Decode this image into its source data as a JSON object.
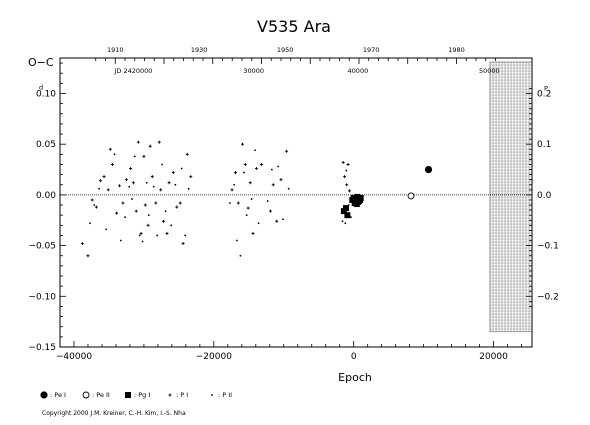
{
  "chart_data": {
    "type": "scatter",
    "title": "V535  Ara",
    "ylabel": "O−C",
    "xlabel": "Epoch",
    "xlim": [
      -42000,
      25500
    ],
    "ylim": [
      -0.15,
      0.135
    ],
    "x_ticks": [
      {
        "value": -40000,
        "label": "−40000"
      },
      {
        "value": -20000,
        "label": "−20000"
      },
      {
        "value": 0,
        "label": "0"
      },
      {
        "value": 20000,
        "label": "20000"
      }
    ],
    "y_ticks": [
      {
        "value": 0.1,
        "label": "0.10"
      },
      {
        "value": 0.05,
        "label": "0.05"
      },
      {
        "value": 0.0,
        "label": "0.00"
      },
      {
        "value": -0.05,
        "label": "−0.05"
      },
      {
        "value": -0.1,
        "label": "−0.10"
      },
      {
        "value": -0.15,
        "label": "−0.15"
      }
    ],
    "y_unit_mark": "d",
    "right_ticks": [
      {
        "value": 0.2,
        "label": "0.2"
      },
      {
        "value": 0.1,
        "label": "0.1"
      },
      {
        "value": 0.0,
        "label": "0.0"
      },
      {
        "value": -0.1,
        "label": "−0.1"
      },
      {
        "value": -0.2,
        "label": "−0.2"
      }
    ],
    "right_unit_mark": "P",
    "top_year_ticks": [
      {
        "label": "1910",
        "epoch": -34100
      },
      {
        "label": "1930",
        "epoch": -22100
      },
      {
        "label": "1950",
        "epoch": -9800
      },
      {
        "label": "1970",
        "epoch": 2500
      },
      {
        "label": "1980",
        "epoch": 14700
      }
    ],
    "top_jd_labels": [
      {
        "label": "JD 2420000",
        "epoch": -31500
      },
      {
        "label": "30000",
        "epoch": -14300
      },
      {
        "label": "40000",
        "epoch": 600
      },
      {
        "label": "50000",
        "epoch": 19400
      }
    ],
    "future_region": {
      "x_start": 19500,
      "x_end": 25500,
      "y_top": 0.131,
      "y_bottom": -0.135
    },
    "series": [
      {
        "name": ": Pe I",
        "marker": "filled-circle",
        "points": [
          [
            10700,
            0.025
          ]
        ]
      },
      {
        "name": ": Pe II",
        "marker": "open-circle",
        "points": [
          [
            8200,
            -0.001
          ]
        ]
      },
      {
        "name": ": Pg I",
        "marker": "filled-square",
        "points": [
          [
            -1400,
            -0.016
          ],
          [
            -1100,
            -0.013
          ],
          [
            -900,
            -0.02
          ],
          [
            -200,
            -0.005
          ],
          [
            0,
            -0.003
          ],
          [
            200,
            -0.006
          ],
          [
            300,
            -0.004
          ],
          [
            500,
            -0.002
          ],
          [
            600,
            -0.007
          ],
          [
            800,
            -0.004
          ],
          [
            900,
            -0.005
          ],
          [
            1000,
            -0.003
          ],
          [
            150,
            -0.008
          ],
          [
            450,
            -0.009
          ],
          [
            750,
            -0.006
          ]
        ]
      },
      {
        "name": ": P I",
        "marker": "plus",
        "points": [
          [
            -38800,
            -0.048
          ],
          [
            -38000,
            -0.06
          ],
          [
            -37400,
            -0.005
          ],
          [
            -36800,
            -0.012
          ],
          [
            -36200,
            0.014
          ],
          [
            -35700,
            0.018
          ],
          [
            -35100,
            0.005
          ],
          [
            -34800,
            0.045
          ],
          [
            -34500,
            0.03
          ],
          [
            -33900,
            -0.018
          ],
          [
            -33500,
            0.009
          ],
          [
            -33000,
            -0.008
          ],
          [
            -32500,
            0.015
          ],
          [
            -31900,
            0.026
          ],
          [
            -31500,
            0.012
          ],
          [
            -31100,
            -0.016
          ],
          [
            -30800,
            0.052
          ],
          [
            -30400,
            -0.038
          ],
          [
            -30000,
            0.038
          ],
          [
            -29800,
            -0.01
          ],
          [
            -29400,
            -0.03
          ],
          [
            -29100,
            0.048
          ],
          [
            -28800,
            0.018
          ],
          [
            -28300,
            -0.008
          ],
          [
            -27800,
            0.052
          ],
          [
            -27600,
            0.005
          ],
          [
            -27200,
            -0.026
          ],
          [
            -26700,
            -0.038
          ],
          [
            -26400,
            0.012
          ],
          [
            -25800,
            0.022
          ],
          [
            -25300,
            -0.012
          ],
          [
            -24800,
            -0.008
          ],
          [
            -24400,
            -0.048
          ],
          [
            -23800,
            0.04
          ],
          [
            -23300,
            0.018
          ],
          [
            -17400,
            0.005
          ],
          [
            -16900,
            0.022
          ],
          [
            -16500,
            -0.008
          ],
          [
            -15900,
            0.05
          ],
          [
            -15500,
            0.03
          ],
          [
            -15100,
            -0.013
          ],
          [
            -14800,
            0.012
          ],
          [
            -14400,
            -0.038
          ],
          [
            -13900,
            0.026
          ],
          [
            -13200,
            0.03
          ],
          [
            -11900,
            -0.016
          ],
          [
            -11500,
            0.01
          ],
          [
            -11000,
            -0.026
          ],
          [
            -10400,
            0.015
          ],
          [
            -9600,
            0.043
          ],
          [
            -1500,
            0.032
          ],
          [
            -1300,
            0.018
          ],
          [
            -1000,
            0.01
          ],
          [
            -800,
            0.03
          ],
          [
            -600,
            0.004
          ]
        ]
      },
      {
        "name": ": P II",
        "marker": "dot",
        "points": [
          [
            -37700,
            -0.028
          ],
          [
            -37100,
            -0.01
          ],
          [
            -36400,
            0.006
          ],
          [
            -35400,
            -0.034
          ],
          [
            -34200,
            0.04
          ],
          [
            -33300,
            -0.045
          ],
          [
            -32700,
            -0.022
          ],
          [
            -32100,
            0.008
          ],
          [
            -31700,
            -0.004
          ],
          [
            -31300,
            0.038
          ],
          [
            -30600,
            -0.04
          ],
          [
            -30200,
            -0.046
          ],
          [
            -29600,
            0.012
          ],
          [
            -29300,
            -0.02
          ],
          [
            -28600,
            0.008
          ],
          [
            -28100,
            -0.04
          ],
          [
            -27400,
            0.03
          ],
          [
            -26900,
            -0.016
          ],
          [
            -26100,
            -0.03
          ],
          [
            -25500,
            0.01
          ],
          [
            -24600,
            0.026
          ],
          [
            -24100,
            -0.04
          ],
          [
            -23600,
            0.006
          ],
          [
            -17700,
            -0.008
          ],
          [
            -17100,
            0.01
          ],
          [
            -16700,
            -0.045
          ],
          [
            -16200,
            -0.06
          ],
          [
            -15700,
            0.022
          ],
          [
            -15300,
            -0.02
          ],
          [
            -14600,
            -0.004
          ],
          [
            -14100,
            0.044
          ],
          [
            -13600,
            -0.028
          ],
          [
            -12300,
            -0.006
          ],
          [
            -11700,
            0.025
          ],
          [
            -10800,
            0.028
          ],
          [
            -10100,
            -0.024
          ],
          [
            -9300,
            0.006
          ],
          [
            -1600,
            -0.026
          ],
          [
            -1200,
            -0.028
          ],
          [
            -700,
            -0.01
          ],
          [
            -400,
            -0.022
          ],
          [
            -1050,
            0.024
          ]
        ]
      }
    ],
    "legend_position": "bottom-left"
  },
  "legend": [
    {
      "marker": "filled-circle",
      "label": ": Pe I"
    },
    {
      "marker": "open-circle",
      "label": ": Pe II"
    },
    {
      "marker": "filled-square",
      "label": ": Pg I"
    },
    {
      "marker": "plus",
      "label": ": P I"
    },
    {
      "marker": "dot",
      "label": ": P II"
    }
  ],
  "copyright": "Copyright 2000 J.M. Kreiner, C.-H. Kim, I.-S. Nha"
}
